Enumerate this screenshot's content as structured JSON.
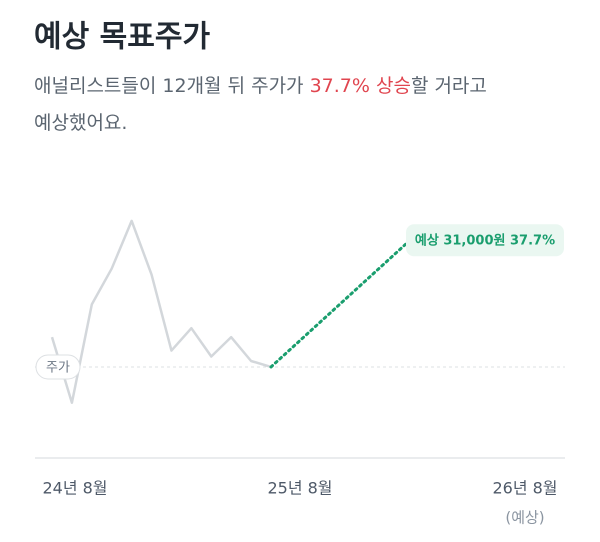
{
  "chart_data": {
    "type": "line",
    "title": "예상 목표주가",
    "subtitle_parts": [
      "애널리스트들이 12개월 뒤 주가가 ",
      "37.7% 상승",
      "할 거라고 예상했어요."
    ],
    "series": [
      {
        "name": "주가",
        "color": "#d3d7db",
        "values": [
          24500,
          20100,
          26700,
          29100,
          32300,
          28700,
          23600,
          25100,
          23200,
          24500,
          22900,
          22500
        ]
      },
      {
        "name": "예상",
        "color": "#1a9e6e",
        "values": [
          22500,
          31000
        ]
      }
    ],
    "target_label": "예상 31,000원 37.7%",
    "ylim": [
      17600,
      33700
    ],
    "xticks": [
      "24년 8월",
      "25년 8월",
      "26년 8월"
    ],
    "x_note": "(예상)"
  }
}
